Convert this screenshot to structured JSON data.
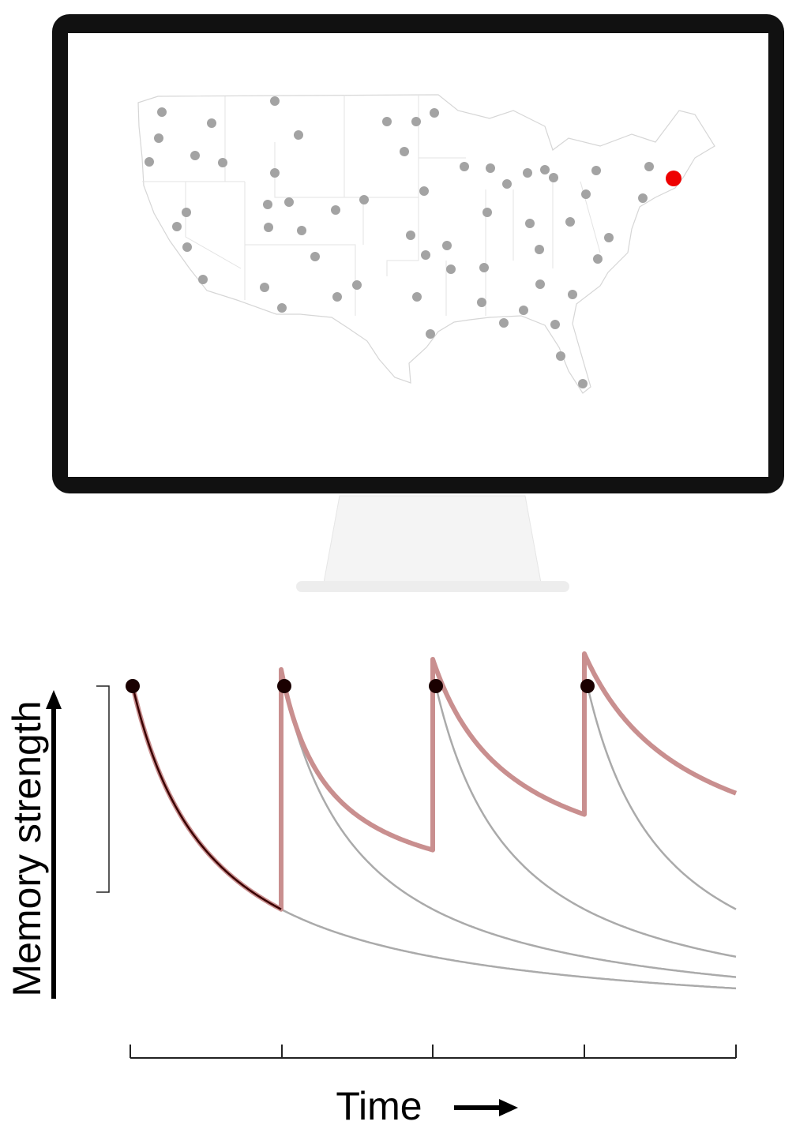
{
  "axis_labels": {
    "y": "Memory strength",
    "x": "Time"
  }
}
